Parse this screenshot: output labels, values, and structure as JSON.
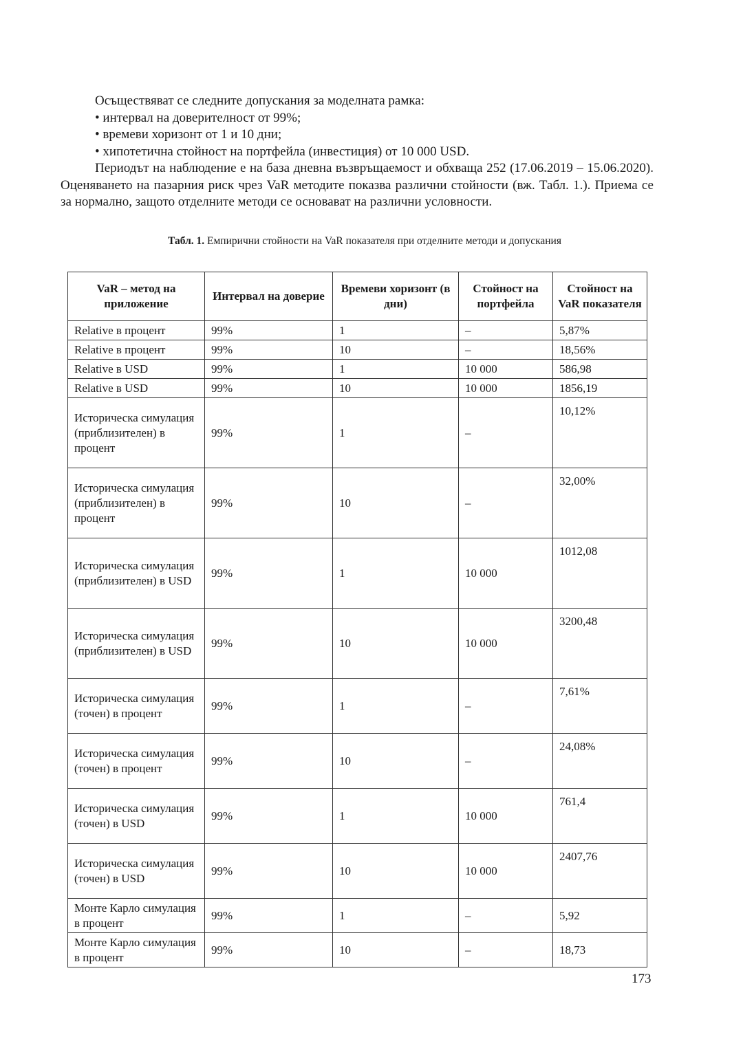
{
  "intro": {
    "lead": "Осъществяват се следните допускания за моделната рамка:",
    "bullets": [
      "интервал на доверителност от 99%;",
      "времеви хоризонт от 1 и 10 дни;",
      "хипотетична стойност на портфейла (инвестиция) от 10 000 USD."
    ],
    "paragraph": "Периодът на наблюдение е на база дневна възвръщаемост и обхваща 252 (17.06.2019 – 15.06.2020). Оценяването на пазарния риск чрез VaR методите показва различни стойности (вж. Табл. 1.). Приема се за нормално, защото отделните методи се основават на различни условности."
  },
  "table": {
    "caption_label": "Табл. 1.",
    "caption_text": " Емпирични стойности на VaR показателя при отделните методи и допускания",
    "headers": [
      "VaR – метод на приложение",
      "Интервал на доверие",
      "Времеви хоризонт (в дни)",
      "Стойност на портфейла",
      "Стойност на VaR показателя"
    ],
    "rows": [
      {
        "method": "Relative в процент",
        "interval": "99%",
        "horizon": "1",
        "portfolio": "–",
        "var": "5,87%"
      },
      {
        "method": "Relative в процент",
        "interval": "99%",
        "horizon": "10",
        "portfolio": "–",
        "var": "18,56%"
      },
      {
        "method": "Relative в USD",
        "interval": "99%",
        "horizon": "1",
        "portfolio": "10 000",
        "var": "586,98"
      },
      {
        "method": "Relative в USD",
        "interval": "99%",
        "horizon": "10",
        "portfolio": "10 000",
        "var": "1856,19"
      },
      {
        "method": "Историческа симулация (приблизителен) в процент",
        "interval": "99%",
        "horizon": "1",
        "portfolio": "–",
        "var": "10,12%"
      },
      {
        "method": "Историческа симулация (приблизителен) в процент",
        "interval": "99%",
        "horizon": "10",
        "portfolio": "–",
        "var": "32,00%"
      },
      {
        "method": "Историческа симулация (приблизителен) в USD",
        "interval": "99%",
        "horizon": "1",
        "portfolio": "10 000",
        "var": "1012,08"
      },
      {
        "method": "Историческа симулация (приблизителен) в USD",
        "interval": "99%",
        "horizon": "10",
        "portfolio": "10 000",
        "var": "3200,48"
      },
      {
        "method": "Историческа симулация (точен) в процент",
        "interval": "99%",
        "horizon": "1",
        "portfolio": "–",
        "var": "7,61%"
      },
      {
        "method": "Историческа симулация (точен) в процент",
        "interval": "99%",
        "horizon": "10",
        "portfolio": "–",
        "var": "24,08%"
      },
      {
        "method": "Историческа симулация (точен) в USD",
        "interval": "99%",
        "horizon": "1",
        "portfolio": "10 000",
        "var": "761,4"
      },
      {
        "method": "Историческа симулация (точен) в USD",
        "interval": "99%",
        "horizon": "10",
        "portfolio": "10 000",
        "var": "2407,76"
      },
      {
        "method": "Монте Карло симулация в процент",
        "interval": "99%",
        "horizon": "1",
        "portfolio": "–",
        "var": "5,92"
      },
      {
        "method": "Монте Карло симулация в процент",
        "interval": "99%",
        "horizon": "10",
        "portfolio": "–",
        "var": "18,73"
      }
    ]
  },
  "page_number": "173"
}
